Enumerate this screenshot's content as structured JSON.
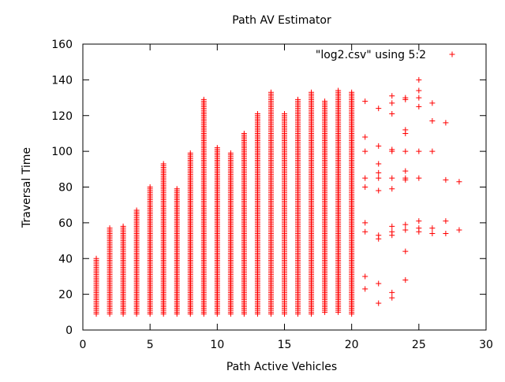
{
  "chart_data": {
    "type": "scatter",
    "title": "Path AV Estimator",
    "xlabel": "Path Active Vehicles",
    "ylabel": "Traversal Time",
    "xlim": [
      0,
      30
    ],
    "ylim": [
      0,
      160
    ],
    "xticks": [
      "0",
      "5",
      "10",
      "15",
      "20",
      "25",
      "30"
    ],
    "yticks": [
      "0",
      "20",
      "40",
      "60",
      "80",
      "100",
      "120",
      "140",
      "160"
    ],
    "grid": false,
    "legend_position": "top-right",
    "marker_color": "#ff0000",
    "series": [
      {
        "name": "\"log2.csv\" using 5:2",
        "columns": [
          {
            "x": 1,
            "y_min": 9,
            "y_max": 40
          },
          {
            "x": 2,
            "y_min": 9,
            "y_max": 57
          },
          {
            "x": 3,
            "y_min": 9,
            "y_max": 58
          },
          {
            "x": 4,
            "y_min": 9,
            "y_max": 67
          },
          {
            "x": 5,
            "y_min": 9,
            "y_max": 80
          },
          {
            "x": 6,
            "y_min": 9,
            "y_max": 93
          },
          {
            "x": 7,
            "y_min": 9,
            "y_max": 79
          },
          {
            "x": 8,
            "y_min": 9,
            "y_max": 99
          },
          {
            "x": 9,
            "y_min": 9,
            "y_max": 129
          },
          {
            "x": 10,
            "y_min": 9,
            "y_max": 102
          },
          {
            "x": 11,
            "y_min": 9,
            "y_max": 99
          },
          {
            "x": 12,
            "y_min": 9,
            "y_max": 110
          },
          {
            "x": 13,
            "y_min": 9,
            "y_max": 121
          },
          {
            "x": 14,
            "y_min": 9,
            "y_max": 133
          },
          {
            "x": 15,
            "y_min": 9,
            "y_max": 121
          },
          {
            "x": 16,
            "y_min": 9,
            "y_max": 129
          },
          {
            "x": 17,
            "y_min": 9,
            "y_max": 133
          },
          {
            "x": 18,
            "y_min": 10,
            "y_max": 128
          },
          {
            "x": 19,
            "y_min": 10,
            "y_max": 134
          },
          {
            "x": 20,
            "y_min": 9,
            "y_max": 133
          }
        ],
        "points": [
          {
            "x": 21,
            "y": 128
          },
          {
            "x": 21,
            "y": 108
          },
          {
            "x": 21,
            "y": 100
          },
          {
            "x": 21,
            "y": 85
          },
          {
            "x": 21,
            "y": 80
          },
          {
            "x": 21,
            "y": 60
          },
          {
            "x": 21,
            "y": 55
          },
          {
            "x": 21,
            "y": 30
          },
          {
            "x": 21,
            "y": 23
          },
          {
            "x": 22,
            "y": 124
          },
          {
            "x": 22,
            "y": 103
          },
          {
            "x": 22,
            "y": 93
          },
          {
            "x": 22,
            "y": 88
          },
          {
            "x": 22,
            "y": 85
          },
          {
            "x": 22,
            "y": 78
          },
          {
            "x": 22,
            "y": 53
          },
          {
            "x": 22,
            "y": 51
          },
          {
            "x": 22,
            "y": 26
          },
          {
            "x": 22,
            "y": 15
          },
          {
            "x": 23,
            "y": 131
          },
          {
            "x": 23,
            "y": 127
          },
          {
            "x": 23,
            "y": 121
          },
          {
            "x": 23,
            "y": 101
          },
          {
            "x": 23,
            "y": 100
          },
          {
            "x": 23,
            "y": 85
          },
          {
            "x": 23,
            "y": 79
          },
          {
            "x": 23,
            "y": 58
          },
          {
            "x": 23,
            "y": 55
          },
          {
            "x": 23,
            "y": 53
          },
          {
            "x": 23,
            "y": 21
          },
          {
            "x": 23,
            "y": 18
          },
          {
            "x": 24,
            "y": 130
          },
          {
            "x": 24,
            "y": 129
          },
          {
            "x": 24,
            "y": 112
          },
          {
            "x": 24,
            "y": 110
          },
          {
            "x": 24,
            "y": 100
          },
          {
            "x": 24,
            "y": 89
          },
          {
            "x": 24,
            "y": 85
          },
          {
            "x": 24,
            "y": 84
          },
          {
            "x": 24,
            "y": 59
          },
          {
            "x": 24,
            "y": 56
          },
          {
            "x": 24,
            "y": 44
          },
          {
            "x": 24,
            "y": 28
          },
          {
            "x": 25,
            "y": 140
          },
          {
            "x": 25,
            "y": 134
          },
          {
            "x": 25,
            "y": 130
          },
          {
            "x": 25,
            "y": 125
          },
          {
            "x": 25,
            "y": 100
          },
          {
            "x": 25,
            "y": 85
          },
          {
            "x": 25,
            "y": 61
          },
          {
            "x": 25,
            "y": 57
          },
          {
            "x": 25,
            "y": 55
          },
          {
            "x": 26,
            "y": 127
          },
          {
            "x": 26,
            "y": 117
          },
          {
            "x": 26,
            "y": 100
          },
          {
            "x": 26,
            "y": 57
          },
          {
            "x": 26,
            "y": 54
          },
          {
            "x": 27,
            "y": 116
          },
          {
            "x": 27,
            "y": 84
          },
          {
            "x": 27,
            "y": 61
          },
          {
            "x": 27,
            "y": 54
          },
          {
            "x": 28,
            "y": 83
          },
          {
            "x": 28,
            "y": 56
          }
        ]
      }
    ]
  }
}
